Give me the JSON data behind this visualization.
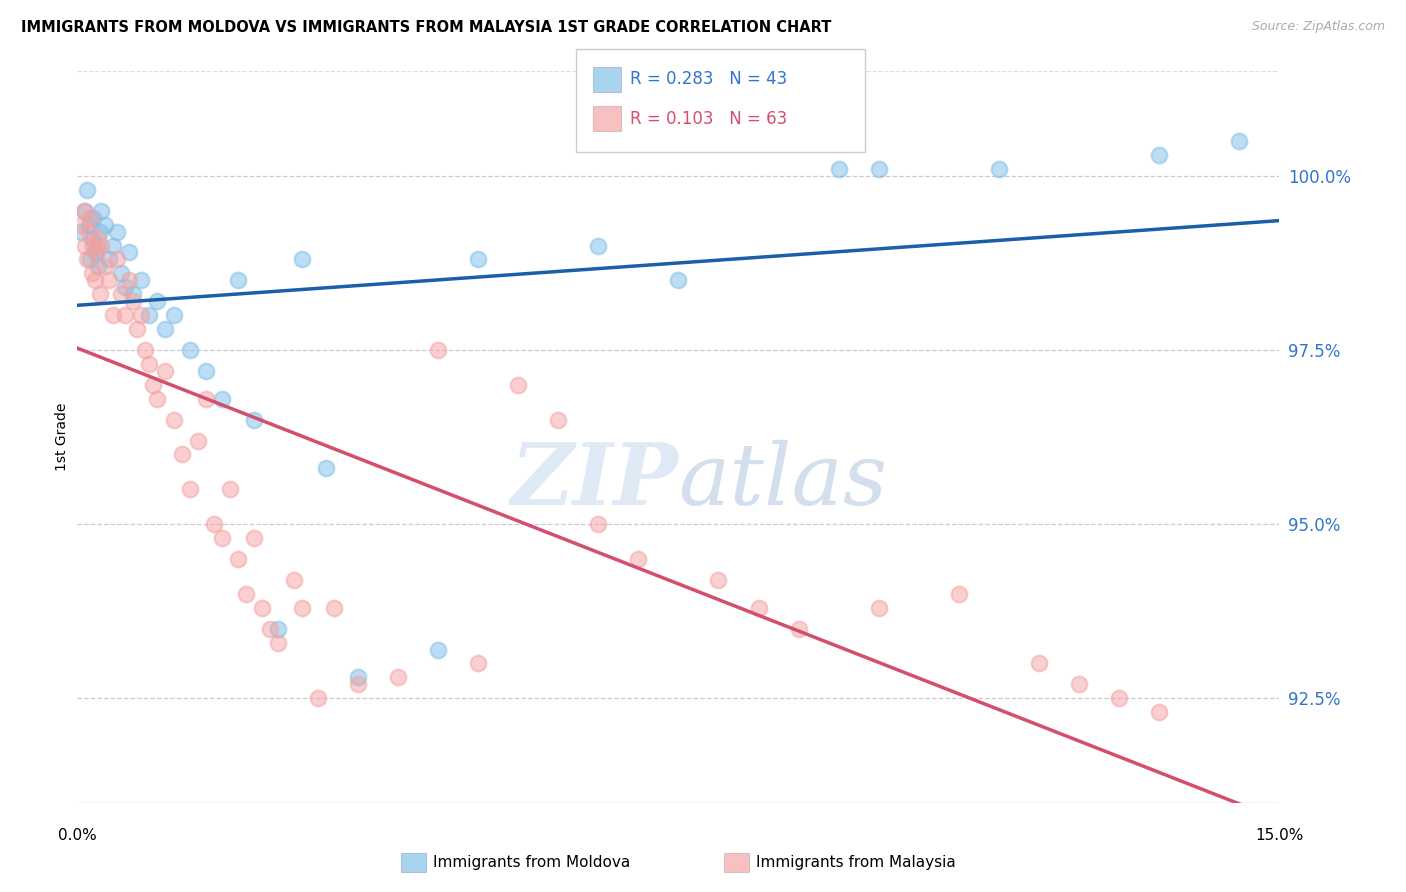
{
  "title": "IMMIGRANTS FROM MOLDOVA VS IMMIGRANTS FROM MALAYSIA 1ST GRADE CORRELATION CHART",
  "source": "Source: ZipAtlas.com",
  "ylabel": "1st Grade",
  "ylim": [
    91.0,
    101.5
  ],
  "xlim": [
    0.0,
    15.0
  ],
  "yticks": [
    92.5,
    95.0,
    97.5,
    100.0
  ],
  "ytick_labels": [
    "92.5%",
    "95.0%",
    "97.5%",
    "100.0%"
  ],
  "legend_r_moldova": "R = 0.283",
  "legend_n_moldova": "N = 43",
  "legend_r_malaysia": "R = 0.103",
  "legend_n_malaysia": "N = 63",
  "color_moldova": "#7bbde8",
  "color_malaysia": "#f4a0a0",
  "color_trendline_moldova": "#1a5fa8",
  "color_trendline_malaysia": "#d44f6e",
  "moldova_x": [
    0.05,
    0.1,
    0.12,
    0.14,
    0.16,
    0.18,
    0.2,
    0.22,
    0.24,
    0.26,
    0.28,
    0.3,
    0.35,
    0.4,
    0.45,
    0.5,
    0.55,
    0.6,
    0.65,
    0.7,
    0.8,
    0.9,
    1.0,
    1.1,
    1.2,
    1.4,
    1.6,
    1.8,
    2.0,
    2.2,
    2.5,
    2.8,
    3.1,
    3.5,
    4.5,
    5.0,
    6.5,
    7.5,
    9.5,
    10.0,
    11.5,
    13.5,
    14.5
  ],
  "moldova_y": [
    99.2,
    99.5,
    99.8,
    99.3,
    98.8,
    99.1,
    99.4,
    98.9,
    99.0,
    98.7,
    99.2,
    99.5,
    99.3,
    98.8,
    99.0,
    99.2,
    98.6,
    98.4,
    98.9,
    98.3,
    98.5,
    98.0,
    98.2,
    97.8,
    98.0,
    97.5,
    97.2,
    96.8,
    98.5,
    96.5,
    93.5,
    98.8,
    95.8,
    92.8,
    93.2,
    98.8,
    99.0,
    98.5,
    100.1,
    100.1,
    100.1,
    100.3,
    100.5
  ],
  "malaysia_x": [
    0.05,
    0.08,
    0.1,
    0.12,
    0.14,
    0.16,
    0.18,
    0.2,
    0.22,
    0.24,
    0.26,
    0.28,
    0.3,
    0.35,
    0.4,
    0.45,
    0.5,
    0.55,
    0.6,
    0.65,
    0.7,
    0.75,
    0.8,
    0.85,
    0.9,
    0.95,
    1.0,
    1.1,
    1.2,
    1.3,
    1.4,
    1.5,
    1.6,
    1.7,
    1.8,
    1.9,
    2.0,
    2.1,
    2.2,
    2.3,
    2.4,
    2.5,
    2.7,
    2.8,
    3.0,
    3.2,
    3.5,
    4.0,
    4.5,
    5.0,
    5.5,
    6.0,
    6.5,
    7.0,
    8.0,
    8.5,
    9.0,
    10.0,
    11.0,
    12.0,
    12.5,
    13.0,
    13.5
  ],
  "malaysia_y": [
    99.3,
    99.5,
    99.0,
    98.8,
    99.2,
    99.4,
    98.6,
    99.0,
    98.5,
    98.9,
    99.1,
    98.3,
    99.0,
    98.7,
    98.5,
    98.0,
    98.8,
    98.3,
    98.0,
    98.5,
    98.2,
    97.8,
    98.0,
    97.5,
    97.3,
    97.0,
    96.8,
    97.2,
    96.5,
    96.0,
    95.5,
    96.2,
    96.8,
    95.0,
    94.8,
    95.5,
    94.5,
    94.0,
    94.8,
    93.8,
    93.5,
    93.3,
    94.2,
    93.8,
    92.5,
    93.8,
    92.7,
    92.8,
    97.5,
    93.0,
    97.0,
    96.5,
    95.0,
    94.5,
    94.2,
    93.8,
    93.5,
    93.8,
    94.0,
    93.0,
    92.7,
    92.5,
    92.3
  ],
  "background_color": "#ffffff",
  "grid_color": "#cccccc"
}
